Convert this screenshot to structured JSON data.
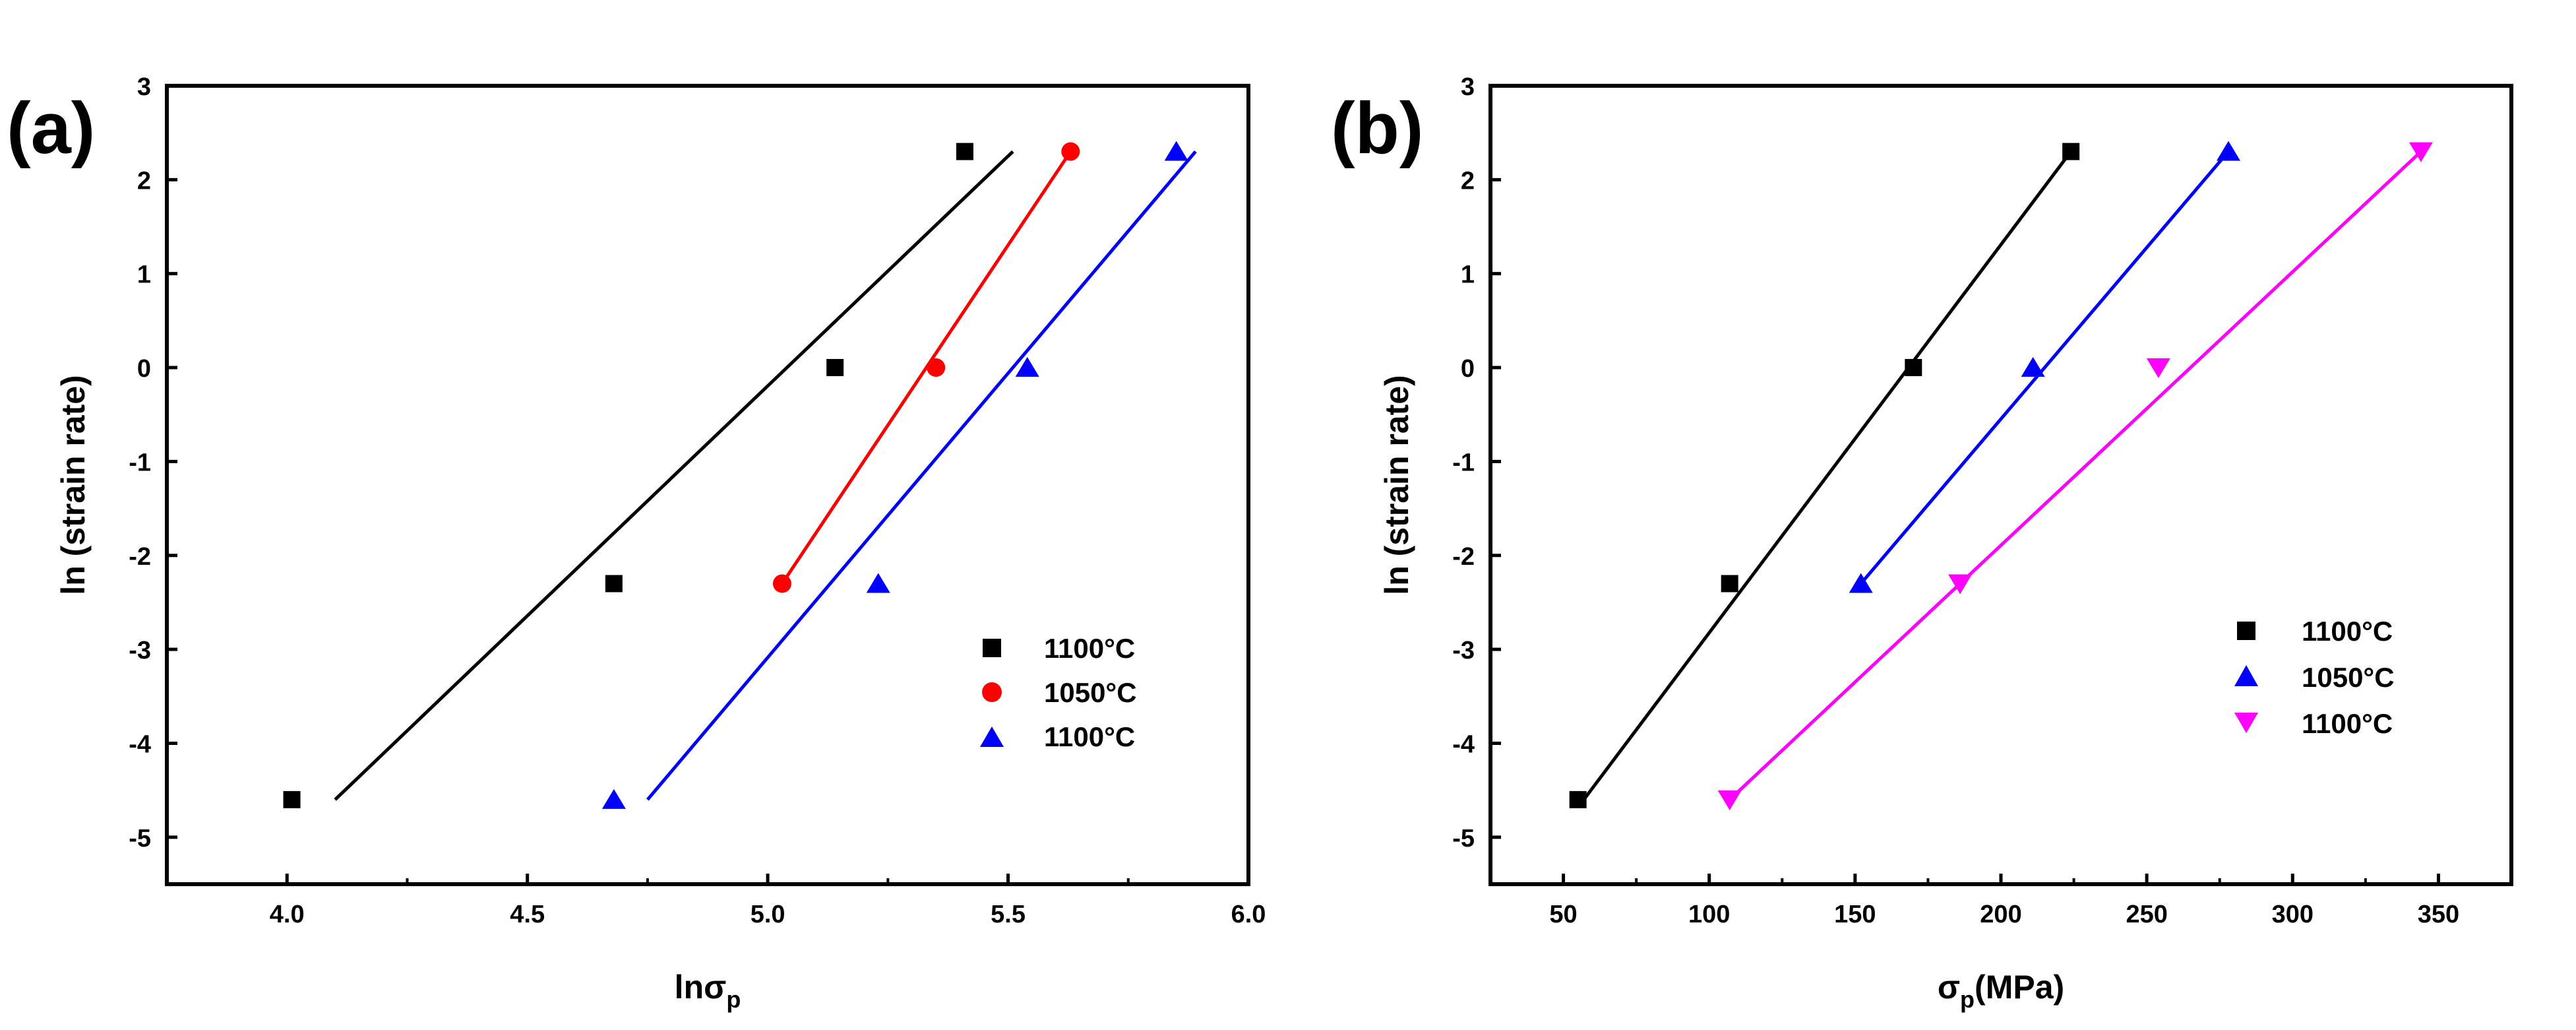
{
  "chart_data": [
    {
      "type": "scatter",
      "panel_label": "(a)",
      "xlabel_main": "lnσ",
      "xlabel_sub": "p",
      "xlabel_unit": "",
      "ylabel": "ln (strain rate)",
      "xlim": [
        3.75,
        6.0
      ],
      "ylim": [
        -5.5,
        3
      ],
      "xticks": [
        4.0,
        4.5,
        5.0,
        5.5,
        6.0
      ],
      "xtick_labels": [
        "4.0",
        "4.5",
        "5.0",
        "5.5",
        "6.0"
      ],
      "yticks": [
        -5,
        -4,
        -3,
        -2,
        -1,
        0,
        1,
        2,
        3
      ],
      "ytick_labels": [
        "-5",
        "-4",
        "-3",
        "-2",
        "-1",
        "0",
        "1",
        "2",
        "3"
      ],
      "legend_position": "lower-right",
      "series": [
        {
          "name": "1100°C",
          "marker": "square",
          "color": "#000000",
          "points": [
            [
              4.01,
              -4.6
            ],
            [
              4.68,
              -2.3
            ],
            [
              5.14,
              0.0
            ],
            [
              5.41,
              2.3
            ]
          ],
          "fit": [
            [
              4.1,
              -4.6
            ],
            [
              5.51,
              2.3
            ]
          ]
        },
        {
          "name": "1050°C",
          "marker": "circle",
          "color": "#ff0000",
          "points": [
            [
              5.03,
              -2.3
            ],
            [
              5.35,
              0.0
            ],
            [
              5.63,
              2.3
            ]
          ],
          "fit": [
            [
              5.03,
              -2.3
            ],
            [
              5.63,
              2.3
            ]
          ]
        },
        {
          "name": "1100°C",
          "marker": "triangle-up",
          "color": "#0000ff",
          "points": [
            [
              4.68,
              -4.6
            ],
            [
              5.23,
              -2.3
            ],
            [
              5.54,
              0.0
            ],
            [
              5.85,
              2.3
            ]
          ],
          "fit": [
            [
              4.75,
              -4.6
            ],
            [
              5.89,
              2.3
            ]
          ]
        }
      ]
    },
    {
      "type": "scatter",
      "panel_label": "(b)",
      "xlabel_main": "σ",
      "xlabel_sub": "p",
      "xlabel_unit": "(MPa)",
      "ylabel": "ln (strain rate)",
      "xlim": [
        25,
        375
      ],
      "ylim": [
        -5.5,
        3
      ],
      "xticks": [
        50,
        100,
        150,
        200,
        250,
        300,
        350
      ],
      "xtick_labels": [
        "50",
        "100",
        "150",
        "200",
        "250",
        "300",
        "350"
      ],
      "yticks": [
        -5,
        -4,
        -3,
        -2,
        -1,
        0,
        1,
        2,
        3
      ],
      "ytick_labels": [
        "-5",
        "-4",
        "-3",
        "-2",
        "-1",
        "0",
        "1",
        "2",
        "3"
      ],
      "legend_position": "lower-right",
      "series": [
        {
          "name": "1100°C",
          "marker": "square",
          "color": "#000000",
          "points": [
            [
              55,
              -4.6
            ],
            [
              107,
              -2.3
            ],
            [
              170,
              0.0
            ],
            [
              224,
              2.3
            ]
          ],
          "fit": [
            [
              57,
              -4.6
            ],
            [
              224,
              2.3
            ]
          ]
        },
        {
          "name": "1050°C",
          "marker": "triangle-up",
          "color": "#0000ff",
          "points": [
            [
              152,
              -2.3
            ],
            [
              211,
              0.0
            ],
            [
              278,
              2.3
            ]
          ],
          "fit": [
            [
              152,
              -2.3
            ],
            [
              278,
              2.3
            ]
          ]
        },
        {
          "name": "1100°C",
          "marker": "triangle-down",
          "color": "#ff00ff",
          "points": [
            [
              107,
              -4.6
            ],
            [
              186,
              -2.3
            ],
            [
              254,
              0.0
            ],
            [
              344,
              2.3
            ]
          ],
          "fit": [
            [
              107,
              -4.6
            ],
            [
              344,
              2.3
            ]
          ]
        }
      ]
    }
  ]
}
